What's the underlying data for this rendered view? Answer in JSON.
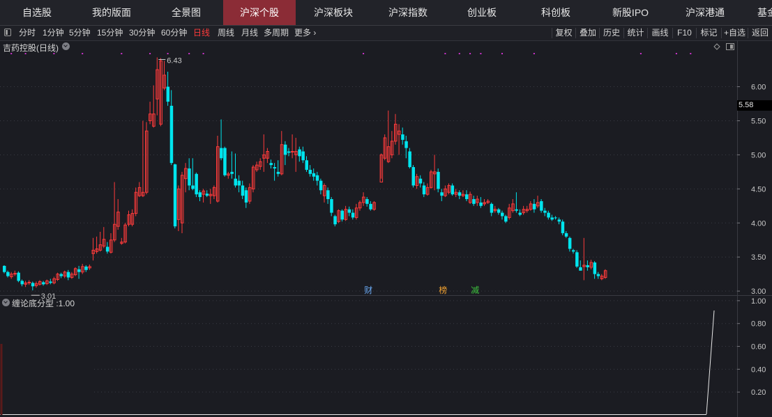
{
  "nav_tabs": [
    {
      "label": "自选股",
      "active": false
    },
    {
      "label": "我的版面",
      "active": false
    },
    {
      "label": "全景图",
      "active": false
    },
    {
      "label": "沪深个股",
      "active": true
    },
    {
      "label": "沪深板块",
      "active": false
    },
    {
      "label": "沪深指数",
      "active": false
    },
    {
      "label": "创业板",
      "active": false
    },
    {
      "label": "科创板",
      "active": false
    },
    {
      "label": "新股IPO",
      "active": false
    },
    {
      "label": "沪深港通",
      "active": false
    },
    {
      "label": "基金",
      "active": false
    }
  ],
  "periods": [
    {
      "label": "分时",
      "active": false
    },
    {
      "label": "1分钟",
      "active": false
    },
    {
      "label": "5分钟",
      "active": false
    },
    {
      "label": "15分钟",
      "active": false
    },
    {
      "label": "30分钟",
      "active": false
    },
    {
      "label": "60分钟",
      "active": false
    },
    {
      "label": "日线",
      "active": true
    },
    {
      "label": "周线",
      "active": false
    },
    {
      "label": "月线",
      "active": false
    },
    {
      "label": "多周期",
      "active": false
    },
    {
      "label": "更多 ›",
      "active": false
    }
  ],
  "tools": [
    "复权",
    "叠加",
    "历史",
    "统计",
    "画线",
    "F10",
    "标记",
    "+自选",
    "返回"
  ],
  "stock_title": "吉药控股(日线)",
  "indicator_title": "缠论底分型 :1.00",
  "current_price": "5.58",
  "colors": {
    "up": "#ff3b3b",
    "down": "#00e5ee",
    "active_tab": "#8b2c36",
    "marker_dots": "#cc33cc"
  },
  "icons": [
    "panel-toggle-icon",
    "dropdown-circle-icon",
    "diamond-icon",
    "window-icon"
  ],
  "event_markers": [
    {
      "label": "财",
      "color": "#6aaaf5",
      "date_index": 102
    },
    {
      "label": "榜",
      "color": "#f0a030",
      "date_index": 123
    },
    {
      "label": "减",
      "color": "#3ec43e",
      "date_index": 132
    }
  ],
  "chart_data": {
    "type": "candlestick",
    "price_ticks": [
      "6.00",
      "5.50",
      "5.00",
      "4.50",
      "4.00",
      "3.50",
      "3.00"
    ],
    "price_tick_values": [
      6.0,
      5.5,
      5.0,
      4.5,
      4.0,
      3.5,
      3.0
    ],
    "ylim": [
      2.94,
      6.68
    ],
    "high_label": "6.43",
    "low_label": "3.01",
    "high_index": 43,
    "low_index": 8,
    "candles": [
      [
        3.37,
        3.28,
        3.38,
        3.26
      ],
      [
        3.28,
        3.22,
        3.3,
        3.2
      ],
      [
        3.21,
        3.25,
        3.28,
        3.18
      ],
      [
        3.25,
        3.26,
        3.3,
        3.22
      ],
      [
        3.27,
        3.15,
        3.29,
        3.13
      ],
      [
        3.15,
        3.1,
        3.17,
        3.07
      ],
      [
        3.1,
        3.12,
        3.15,
        3.06
      ],
      [
        3.12,
        3.13,
        3.16,
        3.09
      ],
      [
        3.12,
        3.07,
        3.14,
        3.01
      ],
      [
        3.08,
        3.11,
        3.14,
        3.05
      ],
      [
        3.1,
        3.14,
        3.16,
        3.08
      ],
      [
        3.13,
        3.1,
        3.15,
        3.08
      ],
      [
        3.11,
        3.15,
        3.17,
        3.09
      ],
      [
        3.14,
        3.12,
        3.18,
        3.1
      ],
      [
        3.12,
        3.18,
        3.21,
        3.1
      ],
      [
        3.17,
        3.25,
        3.27,
        3.15
      ],
      [
        3.25,
        3.22,
        3.27,
        3.19
      ],
      [
        3.22,
        3.28,
        3.3,
        3.19
      ],
      [
        3.28,
        3.2,
        3.31,
        3.16
      ],
      [
        3.2,
        3.25,
        3.28,
        3.18
      ],
      [
        3.24,
        3.33,
        3.35,
        3.22
      ],
      [
        3.32,
        3.28,
        3.37,
        3.18
      ],
      [
        3.28,
        3.36,
        3.4,
        3.25
      ],
      [
        3.36,
        3.31,
        3.38,
        3.28
      ],
      [
        3.34,
        3.36,
        3.39,
        3.31
      ],
      [
        3.55,
        3.6,
        3.78,
        3.45
      ],
      [
        3.58,
        3.62,
        3.8,
        3.55
      ],
      [
        3.6,
        3.68,
        3.87,
        3.58
      ],
      [
        3.66,
        3.76,
        3.94,
        3.63
      ],
      [
        3.65,
        3.58,
        3.72,
        3.55
      ],
      [
        3.57,
        3.75,
        3.85,
        3.55
      ],
      [
        3.75,
        3.98,
        4.6,
        3.72
      ],
      [
        3.95,
        4.16,
        4.35,
        3.9
      ],
      [
        3.7,
        3.72,
        3.78,
        3.68
      ],
      [
        3.72,
        3.97,
        4.0,
        3.7
      ],
      [
        3.98,
        4.12,
        4.18,
        3.95
      ],
      [
        3.98,
        4.14,
        4.2,
        3.95
      ],
      [
        4.14,
        4.45,
        4.52,
        4.1
      ],
      [
        4.4,
        4.52,
        4.6,
        4.38
      ],
      [
        4.4,
        4.45,
        5.5,
        4.38
      ],
      [
        4.45,
        5.35,
        5.48,
        4.42
      ],
      [
        5.5,
        5.6,
        5.78,
        5.45
      ],
      [
        5.42,
        5.6,
        6.02,
        5.4
      ],
      [
        5.82,
        6.25,
        6.43,
        5.58
      ],
      [
        5.45,
        6.38,
        6.42,
        5.42
      ],
      [
        5.98,
        6.17,
        6.38,
        5.95
      ],
      [
        6.0,
        5.78,
        6.22,
        5.72
      ],
      [
        5.72,
        4.88,
        5.95,
        4.85
      ],
      [
        4.86,
        3.95,
        4.87,
        3.92
      ],
      [
        4.05,
        4.5,
        4.55,
        3.88
      ],
      [
        4.0,
        4.7,
        4.75,
        3.85
      ],
      [
        4.65,
        4.8,
        4.88,
        4.45
      ],
      [
        4.8,
        4.55,
        4.95,
        4.48
      ],
      [
        4.55,
        4.5,
        4.95,
        4.48
      ],
      [
        4.72,
        4.42,
        4.74,
        4.38
      ],
      [
        4.45,
        4.38,
        4.48,
        4.32
      ],
      [
        4.42,
        4.47,
        4.5,
        4.3
      ],
      [
        4.43,
        4.4,
        4.48,
        4.38
      ],
      [
        4.4,
        4.42,
        4.5,
        4.28
      ],
      [
        4.4,
        4.52,
        4.55,
        4.35
      ],
      [
        4.32,
        5.12,
        5.28,
        4.3
      ],
      [
        5.1,
        4.95,
        5.52,
        4.92
      ],
      [
        5.1,
        4.7,
        5.12,
        4.68
      ],
      [
        4.7,
        4.72,
        4.75,
        4.65
      ],
      [
        4.75,
        4.72,
        5.05,
        4.65
      ],
      [
        4.65,
        4.55,
        5.02,
        4.52
      ],
      [
        4.62,
        4.55,
        4.7,
        4.45
      ],
      [
        4.55,
        4.4,
        4.62,
        4.35
      ],
      [
        4.48,
        4.3,
        4.52,
        4.22
      ],
      [
        4.32,
        4.52,
        4.58,
        4.28
      ],
      [
        4.5,
        4.82,
        4.85,
        4.45
      ],
      [
        4.78,
        4.85,
        4.9,
        4.75
      ],
      [
        4.83,
        4.9,
        4.95,
        4.78
      ],
      [
        4.95,
        5.0,
        5.3,
        4.75
      ],
      [
        4.95,
        5.05,
        5.1,
        4.88
      ],
      [
        4.88,
        4.85,
        4.93,
        4.8
      ],
      [
        4.82,
        4.8,
        4.88,
        4.62
      ],
      [
        4.75,
        4.72,
        4.92,
        4.68
      ],
      [
        4.72,
        5.15,
        5.35,
        4.7
      ],
      [
        5.15,
        5.0,
        5.2,
        4.85
      ],
      [
        5.05,
        5.03,
        5.1,
        4.98
      ],
      [
        5.05,
        5.05,
        5.3,
        4.95
      ],
      [
        5.0,
        5.05,
        5.25,
        4.75
      ],
      [
        5.08,
        4.98,
        5.12,
        4.9
      ],
      [
        5.05,
        4.92,
        5.12,
        4.88
      ],
      [
        4.92,
        4.78,
        4.98,
        4.75
      ],
      [
        4.78,
        4.72,
        4.85,
        4.68
      ],
      [
        4.73,
        4.68,
        4.8,
        4.62
      ],
      [
        4.7,
        4.62,
        4.75,
        4.55
      ],
      [
        4.62,
        4.48,
        4.65,
        4.42
      ],
      [
        4.4,
        4.55,
        4.58,
        4.3
      ],
      [
        4.48,
        4.35,
        4.52,
        4.28
      ],
      [
        4.35,
        4.15,
        4.38,
        4.1
      ],
      [
        4.1,
        3.98,
        4.12,
        3.95
      ],
      [
        4.02,
        4.18,
        4.2,
        4.0
      ],
      [
        4.18,
        4.05,
        4.2,
        4.02
      ],
      [
        4.05,
        4.2,
        4.25,
        4.03
      ],
      [
        4.2,
        4.15,
        4.24,
        4.1
      ],
      [
        4.15,
        4.08,
        4.2,
        4.05
      ],
      [
        4.08,
        4.22,
        4.28,
        4.05
      ],
      [
        4.22,
        4.3,
        4.33,
        4.18
      ],
      [
        4.3,
        4.38,
        4.45,
        4.25
      ],
      [
        4.35,
        4.28,
        4.38,
        4.24
      ],
      [
        4.28,
        4.2,
        4.32,
        4.18
      ],
      [
        4.2,
        4.3,
        4.32,
        4.18
      ],
      null,
      [
        4.6,
        5.0,
        5.02,
        4.65
      ],
      [
        4.95,
        5.25,
        5.3,
        4.92
      ],
      [
        4.9,
        5.12,
        5.65,
        4.88
      ],
      [
        5.0,
        5.2,
        5.35,
        4.95
      ],
      [
        5.2,
        5.45,
        5.6,
        5.15
      ],
      [
        5.3,
        5.35,
        5.45,
        5.0
      ],
      [
        5.3,
        5.22,
        5.4,
        5.15
      ],
      [
        5.2,
        5.1,
        5.28,
        4.95
      ],
      [
        5.05,
        4.82,
        5.1,
        4.8
      ],
      [
        4.82,
        4.55,
        4.85,
        4.52
      ],
      [
        4.55,
        4.68,
        4.72,
        4.5
      ],
      [
        4.65,
        4.58,
        4.7,
        4.52
      ],
      [
        4.55,
        4.42,
        4.6,
        4.38
      ],
      [
        4.42,
        4.52,
        4.58,
        4.4
      ],
      [
        4.52,
        4.75,
        4.78,
        4.5
      ],
      [
        4.72,
        4.75,
        5.0,
        4.48
      ],
      [
        4.75,
        4.5,
        4.8,
        4.45
      ],
      [
        4.45,
        4.4,
        4.5,
        4.32
      ],
      [
        4.4,
        4.5,
        4.55,
        4.38
      ],
      [
        4.45,
        4.55,
        4.58,
        4.42
      ],
      [
        4.55,
        4.42,
        4.58,
        4.4
      ],
      [
        4.42,
        4.45,
        4.5,
        4.38
      ],
      [
        4.45,
        4.4,
        4.48,
        4.35
      ],
      [
        4.4,
        4.42,
        4.48,
        4.38
      ],
      [
        4.42,
        4.35,
        4.48,
        4.32
      ],
      [
        4.3,
        4.42,
        4.46,
        4.28
      ],
      [
        4.35,
        4.28,
        4.4,
        4.25
      ],
      [
        4.3,
        4.35,
        4.4,
        4.25
      ],
      [
        4.3,
        4.25,
        4.38,
        4.22
      ],
      [
        4.28,
        4.3,
        4.35,
        4.25
      ],
      [
        4.3,
        4.32,
        4.35,
        4.28
      ],
      [
        4.28,
        4.15,
        4.3,
        4.1
      ],
      [
        4.18,
        4.2,
        4.25,
        4.15
      ],
      [
        4.2,
        4.15,
        4.22,
        4.12
      ],
      [
        4.15,
        4.1,
        4.18,
        4.05
      ],
      [
        4.1,
        4.02,
        4.12,
        4.0
      ],
      [
        4.08,
        4.22,
        4.28,
        4.05
      ],
      [
        4.18,
        4.28,
        4.35,
        4.15
      ],
      [
        4.2,
        4.18,
        4.45,
        4.15
      ],
      [
        4.15,
        4.12,
        4.2,
        4.1
      ],
      [
        4.15,
        4.2,
        4.25,
        4.12
      ],
      [
        4.18,
        4.2,
        4.25,
        4.15
      ],
      [
        4.2,
        4.28,
        4.32,
        4.18
      ],
      [
        4.28,
        4.2,
        4.35,
        4.15
      ],
      [
        4.25,
        4.3,
        4.4,
        4.22
      ],
      [
        4.32,
        4.18,
        4.35,
        4.15
      ],
      [
        4.18,
        4.15,
        4.22,
        4.1
      ],
      [
        4.15,
        4.08,
        4.18,
        4.05
      ],
      [
        4.08,
        4.05,
        4.12,
        4.03
      ],
      [
        4.08,
        4.07,
        4.1,
        4.05
      ],
      [
        4.05,
        4.02,
        4.08,
        3.98
      ],
      [
        4.02,
        3.85,
        4.05,
        3.82
      ],
      [
        3.85,
        3.8,
        3.88,
        3.78
      ],
      [
        3.78,
        3.62,
        3.8,
        3.58
      ],
      [
        3.6,
        3.58,
        3.62,
        3.55
      ],
      [
        3.57,
        3.36,
        3.6,
        3.34
      ],
      [
        3.35,
        3.3,
        3.45,
        3.3
      ],
      [
        3.36,
        3.38,
        3.78,
        3.16
      ],
      [
        3.38,
        3.35,
        3.45,
        3.3
      ],
      [
        3.35,
        3.42,
        3.46,
        3.32
      ],
      [
        3.42,
        3.25,
        3.44,
        3.18
      ],
      [
        3.25,
        3.22,
        3.28,
        3.18
      ],
      [
        3.18,
        3.22,
        3.25,
        3.16
      ],
      [
        3.2,
        3.3,
        3.32,
        3.18
      ]
    ],
    "marker_dot_indices": [
      2,
      6,
      14,
      22,
      33,
      41,
      46,
      52,
      56,
      101,
      124,
      128,
      131,
      134,
      140,
      149,
      179,
      189,
      193
    ],
    "indicator": {
      "name": "缠论底分型",
      "value": "1.00",
      "ticks": [
        "1.00",
        "0.80",
        "0.60",
        "0.40",
        "0.20"
      ],
      "tick_values": [
        1.0,
        0.8,
        0.6,
        0.4,
        0.2
      ],
      "ylim": [
        0,
        1.03
      ],
      "series": [
        0,
        0,
        0,
        0,
        0,
        0,
        0,
        0,
        0,
        0,
        1
      ]
    }
  }
}
